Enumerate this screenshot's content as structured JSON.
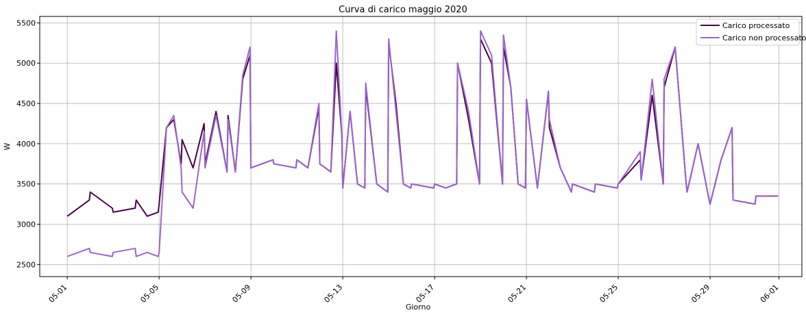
{
  "chart_data": {
    "type": "line",
    "title": "Curva di carico maggio 2020",
    "xlabel": "Giorno",
    "ylabel": "W",
    "grid": true,
    "legend_position": "top-right",
    "x_range_days": [
      "05-01",
      "06-01"
    ],
    "xlim_days": [
      -1.2,
      32.0
    ],
    "ylim": [
      2350,
      5580
    ],
    "x_ticks": [
      "05-01",
      "05-05",
      "05-09",
      "05-13",
      "05-17",
      "05-21",
      "05-25",
      "05-29",
      "06-01"
    ],
    "y_ticks": [
      2500,
      3000,
      3500,
      4000,
      4500,
      5000,
      5500
    ],
    "series": [
      {
        "name": "Carico processato",
        "color": "#4b0049",
        "x": [
          "05-01",
          "05-01",
          "05-02",
          "05-02",
          "05-03",
          "05-03",
          "05-04",
          "05-04",
          "05-04",
          "05-05",
          "05-05",
          "05-05",
          "05-05",
          "05-06",
          "05-06",
          "05-06",
          "05-07",
          "05-07",
          "05-07",
          "05-08",
          "05-08",
          "05-08",
          "05-08",
          "05-09",
          "05-09",
          "05-10",
          "05-10",
          "05-11",
          "05-11",
          "05-11",
          "05-12",
          "05-12",
          "05-12",
          "05-12",
          "05-12",
          "05-13",
          "05-13",
          "05-13",
          "05-13",
          "05-14",
          "05-14",
          "05-14",
          "05-15",
          "05-15",
          "05-15",
          "05-15",
          "05-16",
          "05-16",
          "05-17",
          "05-17",
          "05-17",
          "05-18",
          "05-18",
          "05-18",
          "05-19",
          "05-19",
          "05-19",
          "05-20",
          "05-20",
          "05-20",
          "05-20",
          "05-21",
          "05-21",
          "05-21",
          "05-22",
          "05-22",
          "05-22",
          "05-23",
          "05-23",
          "05-24",
          "05-24",
          "05-25",
          "05-25",
          "05-26",
          "05-26",
          "05-26",
          "05-27",
          "05-27",
          "05-27",
          "05-28",
          "05-28",
          "05-28",
          "05-29",
          "05-29",
          "05-29",
          "05-30",
          "05-30",
          "05-31",
          "05-31"
        ],
        "values": [
          3100,
          3300,
          3400,
          3200,
          3150,
          3200,
          3300,
          3100,
          3150,
          3250,
          4200,
          4300,
          3750,
          4050,
          3700,
          4250,
          3750,
          4400,
          3650,
          4350,
          3650,
          4800,
          5100,
          3700,
          3800,
          3750,
          3700,
          3800,
          3700,
          4450,
          3750,
          3700,
          3650,
          5000,
          4100,
          3450,
          4400,
          3500,
          3450,
          4700,
          3500,
          3400,
          5250,
          4500,
          3500,
          3450,
          3500,
          3450,
          3500,
          3450,
          3500,
          5000,
          4300,
          3500,
          5300,
          5000,
          3500,
          5200,
          4700,
          3500,
          3450,
          4550,
          3450,
          4650,
          4200,
          3700,
          3400,
          3500,
          3400,
          3500,
          3450,
          3500,
          3800,
          3550,
          4600,
          3500,
          4700,
          5200,
          3500,
          3400,
          4000,
          3300,
          3250,
          3800,
          4200,
          3300,
          3250,
          3350,
          3350
        ]
      },
      {
        "name": "Carico non processato",
        "color": "#9966cc",
        "x": [
          "05-01",
          "05-01",
          "05-02",
          "05-02",
          "05-03",
          "05-03",
          "05-04",
          "05-04",
          "05-04",
          "05-05",
          "05-05",
          "05-05",
          "05-05",
          "05-06",
          "05-06",
          "05-06",
          "05-07",
          "05-07",
          "05-07",
          "05-08",
          "05-08",
          "05-08",
          "05-08",
          "05-09",
          "05-09",
          "05-10",
          "05-10",
          "05-11",
          "05-11",
          "05-11",
          "05-12",
          "05-12",
          "05-12",
          "05-12",
          "05-12",
          "05-13",
          "05-13",
          "05-13",
          "05-13",
          "05-14",
          "05-14",
          "05-14",
          "05-15",
          "05-15",
          "05-15",
          "05-15",
          "05-16",
          "05-16",
          "05-17",
          "05-17",
          "05-17",
          "05-18",
          "05-18",
          "05-18",
          "05-19",
          "05-19",
          "05-19",
          "05-20",
          "05-20",
          "05-20",
          "05-20",
          "05-21",
          "05-21",
          "05-21",
          "05-22",
          "05-22",
          "05-22",
          "05-23",
          "05-23",
          "05-24",
          "05-24",
          "05-25",
          "05-25",
          "05-26",
          "05-26",
          "05-26",
          "05-27",
          "05-27",
          "05-27",
          "05-28",
          "05-28",
          "05-28",
          "05-29",
          "05-29",
          "05-29",
          "05-30",
          "05-30",
          "05-31",
          "05-31"
        ],
        "values": [
          2600,
          2700,
          2650,
          2600,
          2650,
          2700,
          2600,
          2650,
          2600,
          2650,
          4200,
          4350,
          3700,
          3400,
          3200,
          4150,
          3700,
          4350,
          3650,
          4300,
          3650,
          4850,
          5200,
          3700,
          3800,
          3750,
          3700,
          3800,
          3700,
          4500,
          3750,
          3700,
          3650,
          5400,
          4100,
          3450,
          4400,
          3500,
          3450,
          4750,
          3500,
          3400,
          5300,
          4400,
          3500,
          3450,
          3500,
          3450,
          3500,
          3450,
          3500,
          5000,
          4400,
          3500,
          5400,
          5100,
          3500,
          5350,
          4700,
          3500,
          3450,
          4550,
          3450,
          4650,
          4300,
          3700,
          3400,
          3500,
          3400,
          3500,
          3450,
          3500,
          3900,
          3550,
          4800,
          3500,
          4800,
          5200,
          3500,
          3400,
          4000,
          3300,
          3250,
          3800,
          4200,
          3300,
          3250,
          3350,
          3350
        ]
      }
    ]
  }
}
